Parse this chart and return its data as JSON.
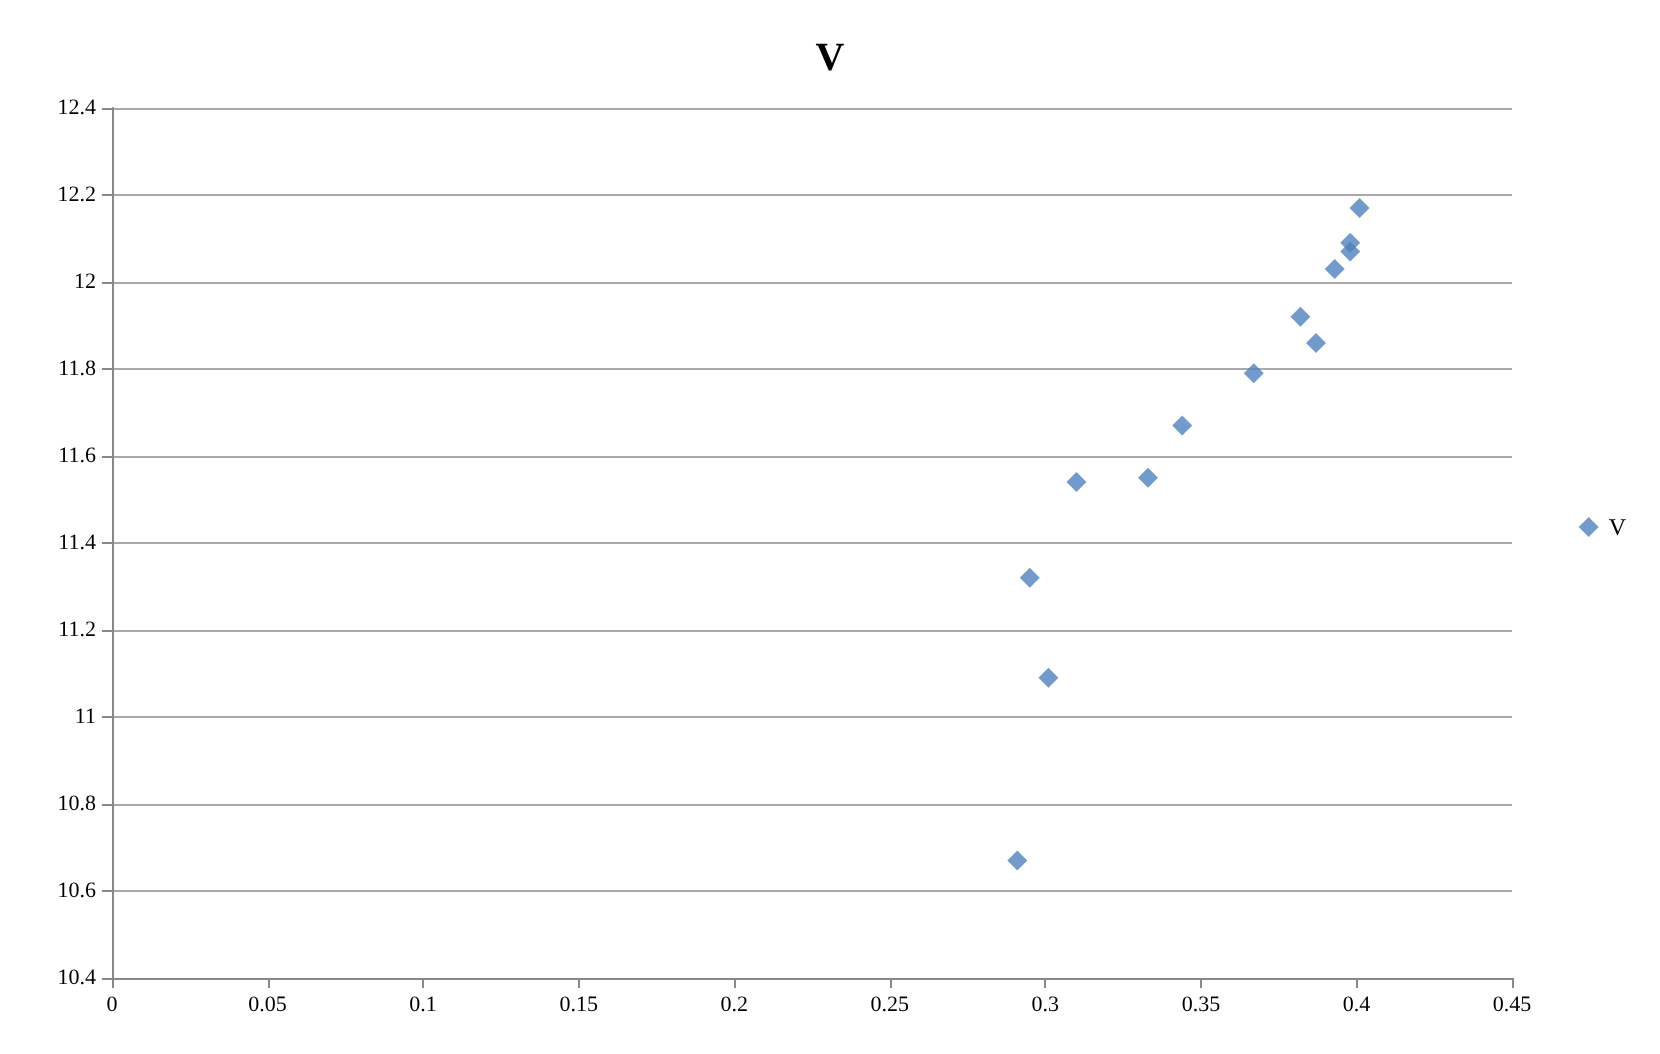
{
  "chart_data": {
    "type": "scatter",
    "title": "V",
    "series": [
      {
        "name": "V",
        "color": "#4f81bd",
        "x": [
          0.401,
          0.398,
          0.398,
          0.393,
          0.382,
          0.387,
          0.367,
          0.344,
          0.333,
          0.31,
          0.295,
          0.301,
          0.291
        ],
        "values": [
          12.17,
          12.09,
          12.07,
          12.03,
          11.92,
          11.86,
          11.79,
          11.67,
          11.55,
          11.54,
          11.32,
          11.09,
          10.67
        ]
      }
    ],
    "xlim": [
      0,
      0.45
    ],
    "xticks": [
      0,
      0.05,
      0.1,
      0.15,
      0.2,
      0.25,
      0.3,
      0.35,
      0.4,
      0.45
    ],
    "ylim": [
      10.4,
      12.4
    ],
    "yticks": [
      10.4,
      10.6,
      10.8,
      11,
      11.2,
      11.4,
      11.6,
      11.8,
      12,
      12.2,
      12.4
    ],
    "grid": "y",
    "legend": "right",
    "marker": "diamond"
  }
}
